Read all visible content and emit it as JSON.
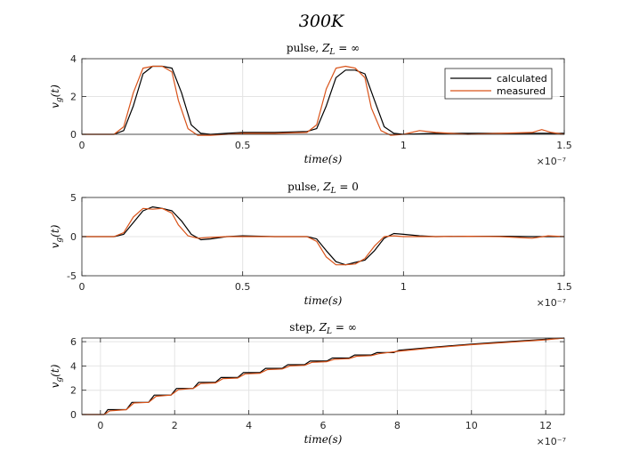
{
  "figure_title": "300K",
  "colors": {
    "calculated": "#000000",
    "measured": "#d95319",
    "grid": "#e4e4e4",
    "axis": "#262626"
  },
  "chart_data": [
    {
      "type": "line",
      "title": "pulse, Z_L = ∞",
      "title_text": "pulse, ",
      "title_math": "Z",
      "title_sub": "L",
      "title_eq": " = ∞",
      "xlabel": "time(s)",
      "ylabel": "v_g(t)",
      "xlim": [
        0,
        1.5
      ],
      "ylim": [
        0,
        4
      ],
      "xticks": [
        0,
        0.5,
        1,
        1.5
      ],
      "xtick_labels": [
        "0",
        "0.5",
        "1",
        "1.5"
      ],
      "yticks": [
        0,
        2,
        4
      ],
      "ytick_labels": [
        "0",
        "2",
        "4"
      ],
      "exponent": "×10⁻⁷",
      "grid": true,
      "legend": "top-right",
      "series": [
        {
          "name": "calculated",
          "x": [
            0,
            0.1,
            0.13,
            0.16,
            0.19,
            0.22,
            0.25,
            0.28,
            0.31,
            0.34,
            0.37,
            0.4,
            0.45,
            0.5,
            0.6,
            0.7,
            0.73,
            0.76,
            0.79,
            0.82,
            0.85,
            0.88,
            0.91,
            0.94,
            0.97,
            1.0,
            1.1,
            1.2,
            1.3,
            1.4,
            1.5
          ],
          "y": [
            0,
            0,
            0.2,
            1.5,
            3.2,
            3.6,
            3.6,
            3.5,
            2.2,
            0.5,
            0.05,
            0,
            0.05,
            0.1,
            0.1,
            0.15,
            0.3,
            1.5,
            3.0,
            3.4,
            3.4,
            3.2,
            1.8,
            0.4,
            0.05,
            0,
            0.05,
            0.05,
            0.05,
            0.05,
            0.05
          ]
        },
        {
          "name": "measured",
          "x": [
            0,
            0.1,
            0.13,
            0.16,
            0.19,
            0.22,
            0.25,
            0.28,
            0.3,
            0.33,
            0.36,
            0.4,
            0.45,
            0.5,
            0.6,
            0.7,
            0.73,
            0.76,
            0.79,
            0.82,
            0.85,
            0.88,
            0.9,
            0.93,
            0.96,
            1.0,
            1.05,
            1.1,
            1.2,
            1.3,
            1.4,
            1.43,
            1.46,
            1.5
          ],
          "y": [
            0,
            0,
            0.4,
            2.2,
            3.5,
            3.6,
            3.6,
            3.3,
            1.8,
            0.3,
            -0.05,
            -0.05,
            0,
            0.05,
            0.05,
            0.1,
            0.5,
            2.4,
            3.5,
            3.6,
            3.5,
            3.0,
            1.4,
            0.2,
            -0.05,
            0,
            0.2,
            0.1,
            0,
            0.05,
            0.1,
            0.25,
            0.1,
            0
          ]
        }
      ]
    },
    {
      "type": "line",
      "title": "pulse, Z_L = 0",
      "title_text": "pulse, ",
      "title_math": "Z",
      "title_sub": "L",
      "title_eq": " = 0",
      "xlabel": "time(s)",
      "ylabel": "v_g(t)",
      "xlim": [
        0,
        1.5
      ],
      "ylim": [
        -5,
        5
      ],
      "xticks": [
        0,
        0.5,
        1,
        1.5
      ],
      "xtick_labels": [
        "0",
        "0.5",
        "1",
        "1.5"
      ],
      "yticks": [
        -5,
        0,
        5
      ],
      "ytick_labels": [
        "-5",
        "0",
        "5"
      ],
      "exponent": "×10⁻⁷",
      "grid": true,
      "series": [
        {
          "name": "calculated",
          "x": [
            0,
            0.1,
            0.13,
            0.16,
            0.19,
            0.22,
            0.25,
            0.28,
            0.31,
            0.34,
            0.37,
            0.4,
            0.45,
            0.5,
            0.6,
            0.7,
            0.73,
            0.76,
            0.79,
            0.82,
            0.85,
            0.88,
            0.91,
            0.94,
            0.97,
            1.0,
            1.05,
            1.1,
            1.2,
            1.3,
            1.4,
            1.5
          ],
          "y": [
            0,
            0,
            0.3,
            1.8,
            3.3,
            3.8,
            3.6,
            3.3,
            2.0,
            0.3,
            -0.4,
            -0.3,
            0,
            0.1,
            0,
            0,
            -0.3,
            -1.8,
            -3.2,
            -3.6,
            -3.3,
            -3.0,
            -1.8,
            -0.2,
            0.4,
            0.3,
            0.1,
            0,
            0.05,
            0.05,
            0,
            0
          ]
        },
        {
          "name": "measured",
          "x": [
            0,
            0.1,
            0.13,
            0.16,
            0.19,
            0.22,
            0.25,
            0.28,
            0.3,
            0.33,
            0.36,
            0.4,
            0.45,
            0.5,
            0.6,
            0.7,
            0.73,
            0.76,
            0.79,
            0.82,
            0.85,
            0.88,
            0.91,
            0.94,
            0.97,
            1.0,
            1.05,
            1.1,
            1.2,
            1.3,
            1.4,
            1.45,
            1.5
          ],
          "y": [
            0,
            0,
            0.5,
            2.5,
            3.6,
            3.5,
            3.6,
            3.0,
            1.5,
            0.1,
            -0.2,
            -0.1,
            0,
            0,
            0,
            0,
            -0.6,
            -2.6,
            -3.6,
            -3.6,
            -3.5,
            -2.8,
            -1.2,
            0,
            0.1,
            0,
            0,
            0,
            0.05,
            0,
            -0.2,
            0.1,
            0
          ]
        }
      ]
    },
    {
      "type": "line",
      "title": "step, Z_L = ∞",
      "title_text": "step, ",
      "title_math": "Z",
      "title_sub": "L",
      "title_eq": " = ∞",
      "xlabel": "time(s)",
      "ylabel": "v_g(t)",
      "xlim": [
        -0.5,
        12.5
      ],
      "ylim": [
        0,
        6.3
      ],
      "xticks": [
        0,
        2,
        4,
        6,
        8,
        10,
        12
      ],
      "xtick_labels": [
        "0",
        "2",
        "4",
        "6",
        "8",
        "10",
        "12"
      ],
      "yticks": [
        0,
        2,
        4,
        6
      ],
      "ytick_labels": [
        "0",
        "2",
        "4",
        "6"
      ],
      "exponent": "×10⁻⁷",
      "grid": true,
      "series": [
        {
          "name": "calculated",
          "x": [
            -0.5,
            0.1,
            0.2,
            0.7,
            0.85,
            1.3,
            1.45,
            1.9,
            2.05,
            2.5,
            2.65,
            3.1,
            3.25,
            3.7,
            3.85,
            4.3,
            4.45,
            4.9,
            5.05,
            5.5,
            5.65,
            6.1,
            6.25,
            6.7,
            6.85,
            7.3,
            7.45,
            7.9,
            8.05,
            9.0,
            10.0,
            11.0,
            12.0,
            12.5
          ],
          "y": [
            0,
            0,
            0.4,
            0.4,
            1.0,
            1.0,
            1.6,
            1.6,
            2.15,
            2.15,
            2.65,
            2.65,
            3.05,
            3.05,
            3.45,
            3.45,
            3.8,
            3.8,
            4.1,
            4.1,
            4.4,
            4.4,
            4.65,
            4.65,
            4.9,
            4.9,
            5.1,
            5.1,
            5.3,
            5.55,
            5.8,
            6.0,
            6.2,
            6.3
          ]
        },
        {
          "name": "measured",
          "x": [
            -0.5,
            0.1,
            0.25,
            0.7,
            0.9,
            1.3,
            1.5,
            1.9,
            2.1,
            2.5,
            2.7,
            3.1,
            3.3,
            3.7,
            3.9,
            4.3,
            4.5,
            4.9,
            5.1,
            5.5,
            5.7,
            6.1,
            6.3,
            6.7,
            6.9,
            7.3,
            7.5,
            8.0,
            9.0,
            10.0,
            11.0,
            12.0,
            12.5
          ],
          "y": [
            0,
            0,
            0.3,
            0.4,
            0.95,
            1.0,
            1.5,
            1.6,
            2.05,
            2.15,
            2.55,
            2.6,
            2.95,
            3.0,
            3.35,
            3.4,
            3.7,
            3.75,
            4.0,
            4.05,
            4.3,
            4.35,
            4.55,
            4.6,
            4.8,
            4.85,
            5.0,
            5.2,
            5.5,
            5.75,
            5.95,
            6.15,
            6.3
          ]
        }
      ]
    }
  ]
}
